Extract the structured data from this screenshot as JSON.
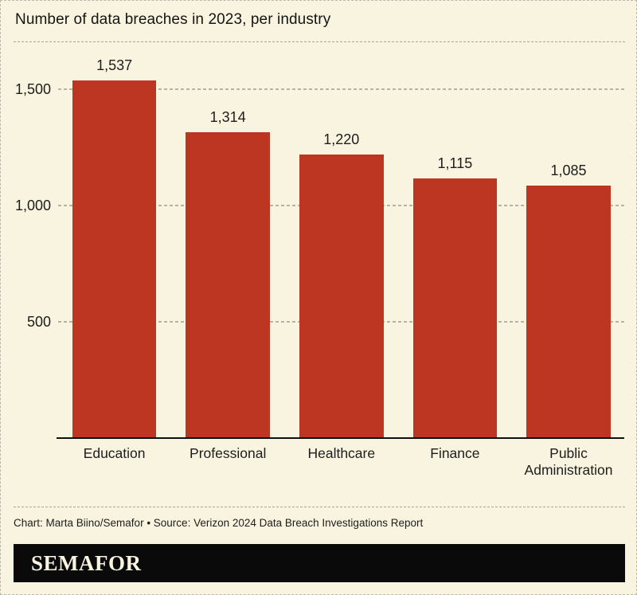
{
  "header": {
    "title": "Number of data breaches in 2023, per industry"
  },
  "chart_data": {
    "type": "bar",
    "title": "Number of data breaches in 2023, per industry",
    "categories": [
      "Education",
      "Professional",
      "Healthcare",
      "Finance",
      "Public Administration"
    ],
    "values": [
      1537,
      1314,
      1220,
      1115,
      1085
    ],
    "value_labels": [
      "1,537",
      "1,314",
      "1,220",
      "1,115",
      "1,085"
    ],
    "xlabel": "",
    "ylabel": "",
    "yticks": [
      500,
      1000,
      1500
    ],
    "ytick_labels": [
      "500",
      "1,000",
      "1,500"
    ],
    "ylim": [
      0,
      1680
    ],
    "grid": "horizontal-dashed",
    "legend": "none",
    "bar_color": "#bd3621"
  },
  "footer": {
    "credit": "Chart: Marta Biino/Semafor • Source: Verizon 2024 Data Breach Investigations Report",
    "brand": "SEMAFOR"
  },
  "colors": {
    "background": "#f8f4e0",
    "bar": "#bd3621",
    "text": "#1d1d1b",
    "gridline": "#b4b4a5",
    "footer_bar": "#0a0a0a"
  }
}
